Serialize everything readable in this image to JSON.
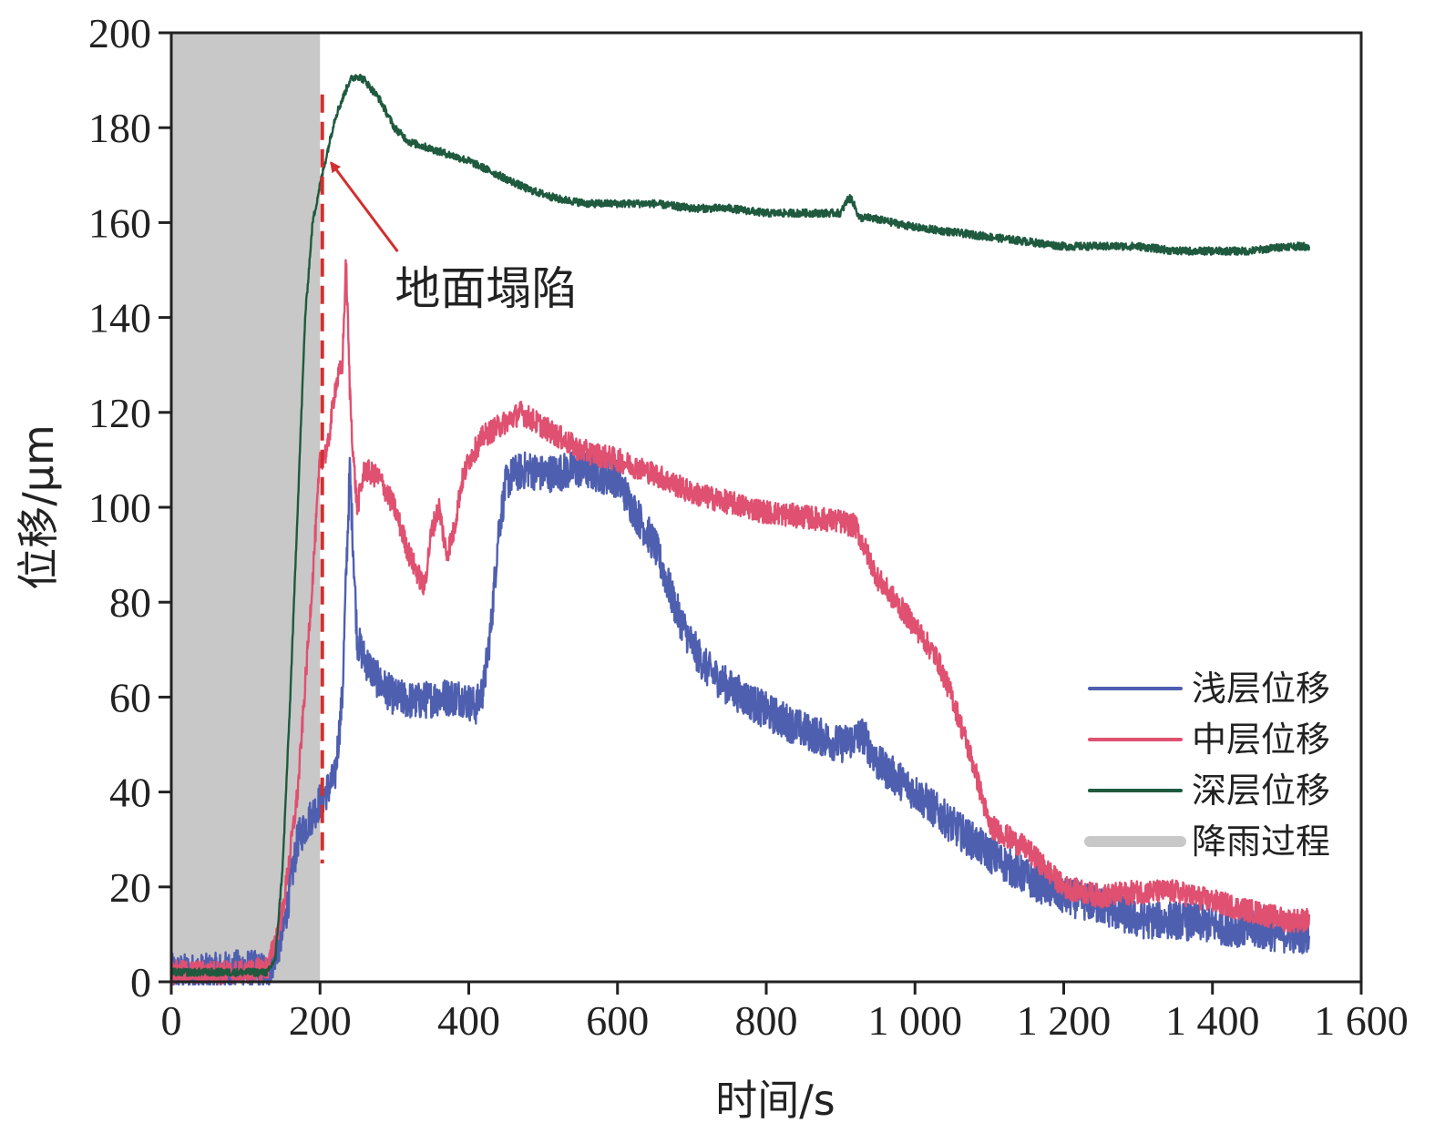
{
  "chart_data": {
    "type": "line",
    "xlabel": "时间/s",
    "ylabel": "位移/μm",
    "xlim": [
      0,
      1600
    ],
    "ylim": [
      0,
      200
    ],
    "x_ticks": [
      0,
      200,
      400,
      600,
      800,
      1000,
      1200,
      1400,
      1600
    ],
    "x_tick_labels": [
      "0",
      "200",
      "400",
      "600",
      "800",
      "1 000",
      "1 200",
      "1 400",
      "1 600"
    ],
    "y_ticks": [
      0,
      20,
      40,
      60,
      80,
      100,
      120,
      140,
      160,
      180,
      200
    ],
    "y_tick_labels": [
      "0",
      "20",
      "40",
      "60",
      "80",
      "100",
      "120",
      "140",
      "160",
      "180",
      "200"
    ],
    "grid": false,
    "legend_position": "bottom-right",
    "shaded_region": {
      "label": "降雨过程",
      "x": [
        0,
        200
      ],
      "color": "#c8c8c8"
    },
    "marker_line": {
      "x": 203,
      "style": "dashed",
      "color": "#d32f2f"
    },
    "annotation": {
      "text": "地面塌陷",
      "point_to": {
        "x": 205,
        "y": 173
      },
      "text_at": {
        "x": 270,
        "y": 152
      }
    },
    "series": [
      {
        "name": "浅层位移",
        "color": "#4f5fb0",
        "noise": 4,
        "x": [
          0,
          50,
          100,
          130,
          150,
          170,
          200,
          220,
          230,
          235,
          240,
          245,
          250,
          260,
          280,
          300,
          330,
          360,
          390,
          410,
          420,
          430,
          440,
          450,
          460,
          480,
          500,
          550,
          600,
          620,
          650,
          680,
          700,
          720,
          750,
          800,
          850,
          900,
          930,
          950,
          1000,
          1050,
          1100,
          1150,
          1200,
          1250,
          1300,
          1350,
          1400,
          1450,
          1500,
          1530
        ],
        "values": [
          2,
          2,
          3,
          2,
          10,
          30,
          38,
          43,
          60,
          85,
          108,
          90,
          72,
          68,
          63,
          60,
          59,
          60,
          60,
          58,
          62,
          75,
          95,
          105,
          107,
          108,
          107,
          108,
          106,
          100,
          92,
          78,
          71,
          66,
          62,
          57,
          53,
          50,
          52,
          46,
          40,
          33,
          27,
          22,
          18,
          16,
          13,
          13,
          12,
          11,
          10,
          10
        ]
      },
      {
        "name": "中层位移",
        "color": "#e05070",
        "noise": 2.5,
        "x": [
          0,
          100,
          130,
          150,
          170,
          190,
          200,
          210,
          220,
          230,
          235,
          240,
          245,
          250,
          260,
          280,
          300,
          320,
          340,
          350,
          360,
          370,
          380,
          390,
          400,
          420,
          450,
          470,
          500,
          550,
          600,
          650,
          700,
          750,
          800,
          850,
          900,
          920,
          950,
          1000,
          1030,
          1050,
          1080,
          1100,
          1150,
          1200,
          1250,
          1300,
          1350,
          1400,
          1450,
          1500,
          1530
        ],
        "values": [
          2,
          2,
          3,
          15,
          40,
          85,
          110,
          112,
          125,
          130,
          152,
          125,
          110,
          100,
          108,
          106,
          100,
          90,
          83,
          95,
          100,
          90,
          95,
          105,
          110,
          115,
          118,
          120,
          117,
          112,
          110,
          107,
          103,
          101,
          99,
          98,
          97,
          96,
          85,
          75,
          68,
          60,
          45,
          33,
          28,
          20,
          18,
          19,
          19,
          17,
          15,
          13,
          13
        ]
      },
      {
        "name": "深层位移",
        "color": "#1f5a3f",
        "noise": 0.8,
        "x": [
          0,
          50,
          100,
          130,
          140,
          150,
          160,
          170,
          180,
          190,
          200,
          210,
          220,
          240,
          250,
          260,
          280,
          300,
          320,
          340,
          360,
          380,
          400,
          440,
          480,
          520,
          560,
          600,
          650,
          700,
          750,
          800,
          850,
          880,
          900,
          910,
          915,
          925,
          940,
          1000,
          1050,
          1100,
          1150,
          1200,
          1250,
          1300,
          1350,
          1400,
          1450,
          1500,
          1530
        ],
        "values": [
          2,
          2,
          2,
          2,
          5,
          25,
          60,
          100,
          140,
          160,
          168,
          175,
          182,
          190,
          191,
          190,
          186,
          180,
          177,
          176,
          175,
          174,
          173,
          170,
          167,
          165,
          164,
          164,
          164,
          163,
          163,
          162,
          162,
          162,
          162,
          165,
          165,
          161,
          161,
          159,
          158,
          157,
          156,
          155,
          155,
          155,
          154,
          154,
          154,
          155,
          155
        ]
      }
    ]
  }
}
